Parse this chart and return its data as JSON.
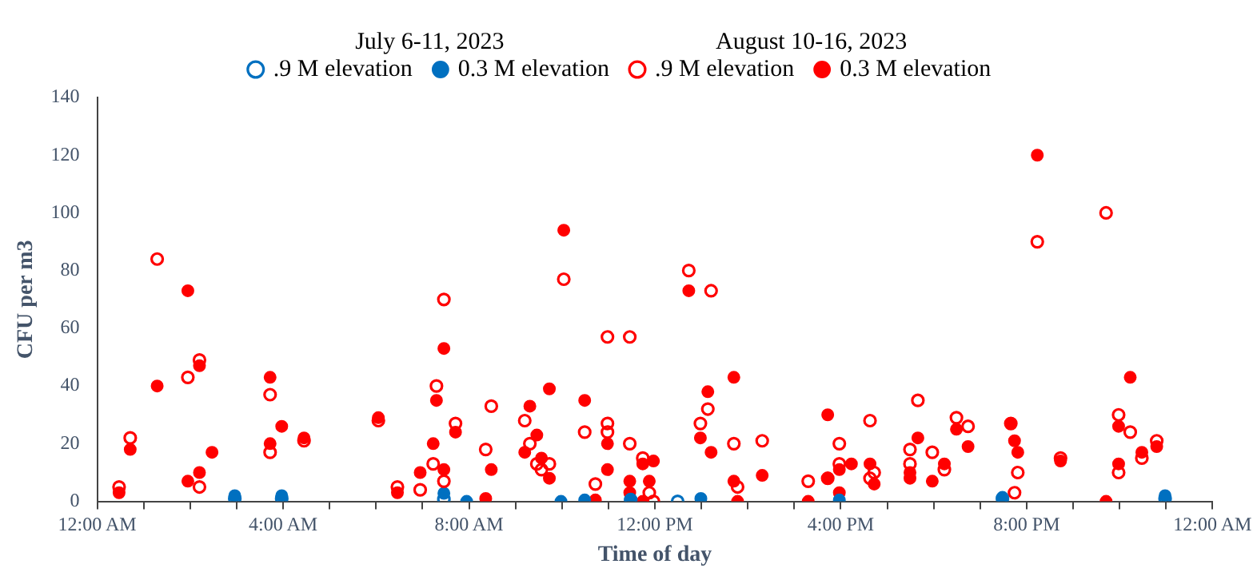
{
  "chart_data": {
    "type": "scatter",
    "xlabel": "Time of day",
    "ylabel": "CFU per m3",
    "annotations": [
      "July 6-11, 2023",
      "August 10-16, 2023"
    ],
    "xlim": [
      0,
      24
    ],
    "ylim": [
      0,
      140
    ],
    "yticks": [
      0,
      20,
      40,
      60,
      80,
      100,
      120,
      140
    ],
    "xticks": [
      {
        "value": 0,
        "label": "12:00 AM"
      },
      {
        "value": 1,
        "label": null
      },
      {
        "value": 2,
        "label": null
      },
      {
        "value": 3,
        "label": null
      },
      {
        "value": 4,
        "label": "4:00 AM"
      },
      {
        "value": 5,
        "label": null
      },
      {
        "value": 6,
        "label": null
      },
      {
        "value": 7,
        "label": null
      },
      {
        "value": 8,
        "label": "8:00 AM"
      },
      {
        "value": 9,
        "label": null
      },
      {
        "value": 10,
        "label": null
      },
      {
        "value": 11,
        "label": null
      },
      {
        "value": 12,
        "label": "12:00 PM"
      },
      {
        "value": 13,
        "label": null
      },
      {
        "value": 14,
        "label": null
      },
      {
        "value": 15,
        "label": null
      },
      {
        "value": 16,
        "label": "4:00 PM"
      },
      {
        "value": 17,
        "label": null
      },
      {
        "value": 18,
        "label": null
      },
      {
        "value": 19,
        "label": null
      },
      {
        "value": 20,
        "label": "8:00 PM"
      },
      {
        "value": 21,
        "label": null
      },
      {
        "value": 22,
        "label": null
      },
      {
        "value": 23,
        "label": null
      },
      {
        "value": 24,
        "label": "12:00 AM"
      }
    ],
    "grid": false,
    "legend": "top",
    "series": [
      {
        "name": ".9 M elevation",
        "color": "#0070c0",
        "marker": "circle-open",
        "x": [
          2.96,
          3.97,
          7.46,
          11.48,
          12.49,
          19.48,
          22.98
        ],
        "values": [
          1,
          1,
          0.8,
          0.5,
          0,
          1,
          1
        ]
      },
      {
        "name": "0.3 M elevation",
        "color": "#0070c0",
        "marker": "circle",
        "x": [
          2.96,
          3.97,
          7.46,
          7.95,
          9.98,
          10.49,
          11.48,
          12.99,
          15.97,
          19.48,
          22.98
        ],
        "values": [
          2,
          2,
          2.8,
          0,
          0,
          0.5,
          0.8,
          1,
          0.5,
          1.4,
          2
        ]
      },
      {
        "name": ".9 M elevation",
        "color": "#ff0000",
        "marker": "circle-open",
        "x": [
          0.47,
          0.71,
          1.29,
          1.95,
          2.2,
          2.2,
          3.72,
          3.72,
          4.45,
          6.05,
          6.46,
          6.95,
          7.23,
          7.3,
          7.46,
          7.46,
          7.71,
          8.36,
          8.48,
          9.2,
          9.31,
          9.46,
          9.56,
          9.73,
          10.04,
          10.49,
          10.72,
          10.98,
          10.98,
          10.98,
          11.46,
          11.46,
          11.74,
          11.88,
          11.97,
          12.73,
          12.98,
          13.14,
          13.21,
          13.7,
          13.78,
          14.31,
          15.3,
          15.72,
          15.97,
          15.97,
          16.63,
          16.63,
          16.72,
          17.49,
          17.49,
          17.66,
          17.97,
          18.23,
          18.49,
          18.74,
          19.66,
          19.81,
          19.74,
          20.23,
          20.73,
          21.71,
          21.98,
          21.98,
          22.23,
          22.48,
          22.8
        ],
        "values": [
          5,
          22,
          84,
          43,
          49,
          5,
          37,
          17,
          21,
          28,
          5,
          4,
          13,
          40,
          70,
          7,
          27,
          18,
          33,
          28,
          20,
          13,
          11,
          13,
          77,
          24,
          6,
          57,
          27,
          24,
          57,
          20,
          15,
          3,
          0,
          80,
          27,
          32,
          73,
          20,
          5,
          21,
          7,
          8,
          20,
          13,
          28,
          8,
          10,
          18,
          13,
          35,
          17,
          11,
          29,
          26,
          27,
          10,
          3,
          90,
          15,
          100,
          30,
          10,
          24,
          15,
          21
        ]
      },
      {
        "name": "0.3 M elevation",
        "color": "#ff0000",
        "marker": "circle",
        "x": [
          0.47,
          0.71,
          1.29,
          1.95,
          1.95,
          2.2,
          2.2,
          2.47,
          3.72,
          3.72,
          3.97,
          4.45,
          6.05,
          6.46,
          6.95,
          7.23,
          7.3,
          7.46,
          7.46,
          7.71,
          8.36,
          8.48,
          9.2,
          9.31,
          9.46,
          9.56,
          9.73,
          9.73,
          10.04,
          10.49,
          10.72,
          10.98,
          10.98,
          11.46,
          11.46,
          11.74,
          11.74,
          11.88,
          11.97,
          12.73,
          12.98,
          13.14,
          13.21,
          13.7,
          13.7,
          13.78,
          14.31,
          15.3,
          15.72,
          15.72,
          15.97,
          15.97,
          16.23,
          16.63,
          16.72,
          17.49,
          17.49,
          17.66,
          17.97,
          18.23,
          18.49,
          18.74,
          19.66,
          19.74,
          19.81,
          20.23,
          20.73,
          21.71,
          21.98,
          21.98,
          22.23,
          22.48,
          22.8
        ],
        "values": [
          3,
          18,
          40,
          73,
          7,
          47,
          10,
          17,
          43,
          20,
          26,
          22,
          29,
          3,
          10,
          20,
          35,
          53,
          11,
          24,
          1,
          11,
          17,
          33,
          23,
          15,
          8,
          39,
          94,
          35,
          0.5,
          20,
          11,
          7,
          3,
          13,
          0,
          7,
          14,
          73,
          22,
          38,
          17,
          43,
          7,
          0,
          9,
          0,
          30,
          8,
          11,
          3,
          13,
          13,
          6,
          10,
          8,
          22,
          7,
          13,
          25,
          19,
          27,
          21,
          17,
          120,
          14,
          0,
          26,
          13,
          43,
          17,
          19
        ]
      }
    ]
  }
}
